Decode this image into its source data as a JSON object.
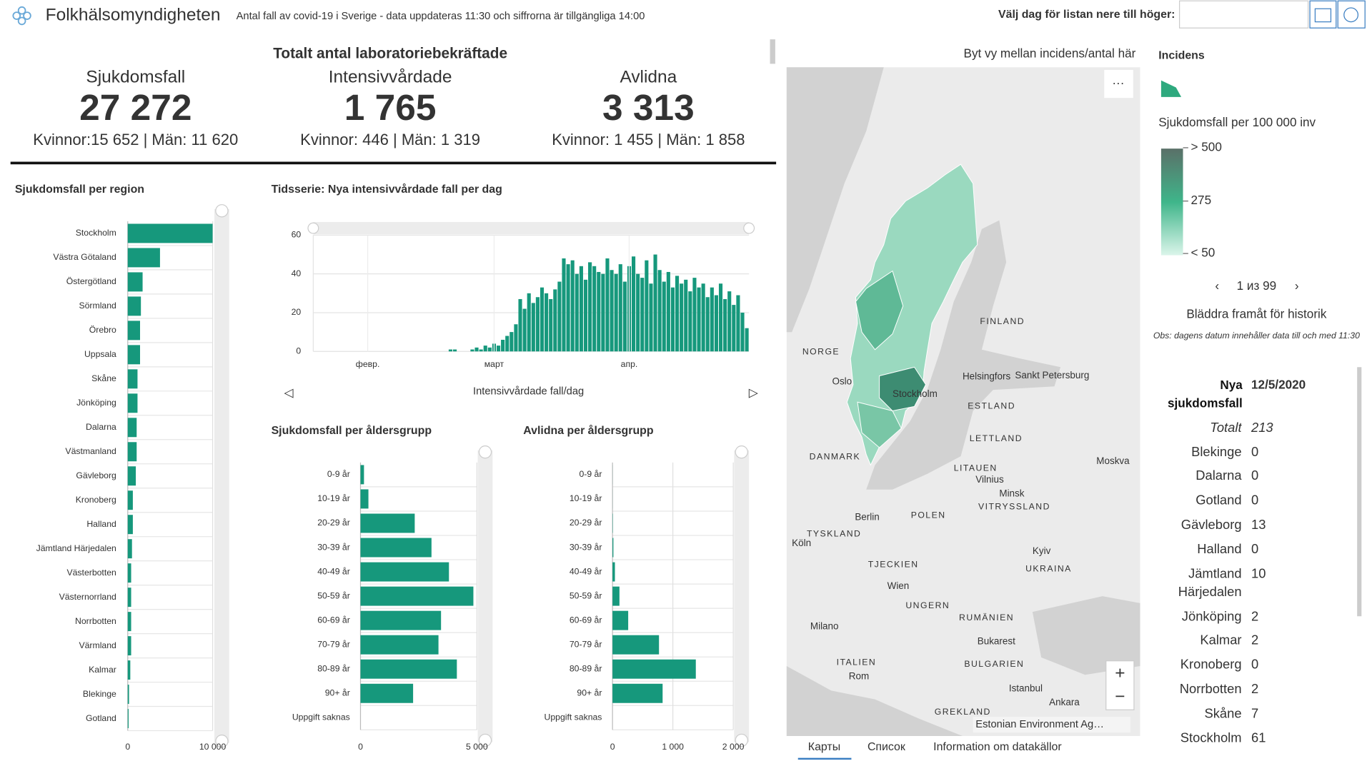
{
  "header": {
    "title": "Folkhälsomyndigheten",
    "subtitle": "Antal fall av covid-19 i Sverige - data uppdateras 11:30 och siffrorna är tillgängliga 14:00",
    "date_picker_label": "Välj dag för listan nere till höger:"
  },
  "summary": {
    "title": "Totalt antal laboratoriebekräftade",
    "items": [
      {
        "label": "Sjukdomsfall",
        "value": "27 272",
        "detail": "Kvinnor:15 652 | Män: 11 620"
      },
      {
        "label": "Intensivvårdade",
        "value": "1 765",
        "detail": "Kvinnor: 446 | Män: 1 319"
      },
      {
        "label": "Avlidna",
        "value": "3 313",
        "detail": "Kvinnor: 1 455 | Män: 1 858"
      }
    ]
  },
  "chart_data": [
    {
      "type": "bar",
      "orientation": "horizontal",
      "title": "Sjukdomsfall per region",
      "categories": [
        "Stockholm",
        "Västra Götaland",
        "Östergötland",
        "Sörmland",
        "Örebro",
        "Uppsala",
        "Skåne",
        "Jönköping",
        "Dalarna",
        "Västmanland",
        "Gävleborg",
        "Kronoberg",
        "Halland",
        "Jämtland Härjedalen",
        "Västerbotten",
        "Västernorrland",
        "Norrbotten",
        "Värmland",
        "Kalmar",
        "Blekinge",
        "Gotland"
      ],
      "values": [
        10000,
        3800,
        1750,
        1550,
        1450,
        1450,
        1150,
        1150,
        1050,
        1050,
        950,
        600,
        600,
        500,
        400,
        400,
        400,
        400,
        300,
        150,
        100
      ],
      "color": "#16987c",
      "xlim": [
        0,
        10000
      ],
      "xticks": [
        0,
        {
          "value": 10000,
          "label": "10 000"
        }
      ],
      "grid": true
    },
    {
      "type": "bar",
      "orientation": "vertical",
      "title": "Tidsserie: Nya intensivvårdade fall per dag",
      "categories": [
        null,
        null,
        null,
        null,
        null,
        null,
        null,
        null,
        null,
        null,
        null,
        null,
        "февр.",
        null,
        null,
        null,
        null,
        null,
        null,
        null,
        null,
        null,
        null,
        null,
        null,
        null,
        null,
        null,
        null,
        null,
        null,
        null,
        null,
        null,
        null,
        null,
        null,
        null,
        null,
        null,
        null,
        "март",
        null,
        null,
        null,
        null,
        null,
        null,
        null,
        null,
        null,
        null,
        null,
        null,
        null,
        null,
        null,
        null,
        null,
        null,
        null,
        null,
        null,
        null,
        null,
        null,
        null,
        null,
        null,
        null,
        null,
        null,
        "апр.",
        null,
        null,
        null,
        null,
        null,
        null,
        null,
        null,
        null,
        null,
        null,
        null,
        null,
        null,
        null,
        null,
        null,
        null,
        null,
        null,
        null,
        null,
        null,
        null,
        null,
        null,
        null
      ],
      "values": [
        0,
        0,
        0,
        0,
        0,
        0,
        0,
        0,
        0,
        0,
        0,
        0,
        0,
        0,
        0,
        0,
        0,
        0,
        0,
        0,
        0,
        0,
        0,
        0,
        0,
        0,
        0,
        0,
        0,
        0,
        0,
        1,
        1,
        0,
        0,
        0,
        1,
        2,
        1,
        3,
        2,
        4,
        3,
        6,
        8,
        10,
        14,
        27,
        22,
        30,
        25,
        28,
        33,
        30,
        27,
        32,
        36,
        48,
        45,
        47,
        40,
        44,
        37,
        46,
        44,
        41,
        40,
        48,
        42,
        40,
        45,
        36,
        44,
        49,
        40,
        38,
        47,
        35,
        50,
        42,
        36,
        41,
        33,
        39,
        35,
        37,
        31,
        38,
        33,
        35,
        28,
        33,
        29,
        35,
        27,
        31,
        24,
        29,
        20,
        12
      ],
      "color": "#16987c",
      "ylim": [
        0,
        60
      ],
      "yticks": [
        0,
        20,
        40,
        60
      ],
      "xlabel": "Intensivvårdade fall/dag",
      "grid": true
    },
    {
      "type": "bar",
      "orientation": "horizontal",
      "title": "Sjukdomsfall per åldersgrupp",
      "categories": [
        "0-9 år",
        "10-19 år",
        "20-29 år",
        "30-39 år",
        "40-49 år",
        "50-59 år",
        "60-69 år",
        "70-79 år",
        "80-89 år",
        "90+ år",
        "Uppgift saknas"
      ],
      "values": [
        150,
        340,
        2330,
        3050,
        3800,
        4850,
        3460,
        3350,
        4140,
        2260,
        0
      ],
      "color": "#16987c",
      "xlim": [
        0,
        5000
      ],
      "xticks": [
        0,
        {
          "value": 5000,
          "label": "5 000"
        }
      ],
      "grid": true
    },
    {
      "type": "bar",
      "orientation": "horizontal",
      "title": "Avlidna per åldersgrupp",
      "categories": [
        "0-9 år",
        "10-19 år",
        "20-29 år",
        "30-39 år",
        "40-49 år",
        "50-59 år",
        "60-69 år",
        "70-79 år",
        "80-89 år",
        "90+ år",
        "Uppgift saknas"
      ],
      "values": [
        1,
        1,
        5,
        15,
        40,
        115,
        260,
        770,
        1380,
        830,
        0
      ],
      "color": "#16987c",
      "xlim": [
        0,
        2000
      ],
      "xticks": [
        0,
        {
          "value": 1000,
          "label": "1 000"
        },
        {
          "value": 2000,
          "label": "2 000"
        }
      ],
      "grid": true
    }
  ],
  "map": {
    "toggle_label": "Byt vy mellan incidens/antal här",
    "labels": [
      "NORGE",
      "FINLAND",
      "Oslo",
      "Helsingfors",
      "Sankt Petersburg",
      "Stockholm",
      "ESTLAND",
      "LETTLAND",
      "DANMARK",
      "LITAUEN",
      "Vilnius",
      "Minsk",
      "VITRYSSLAND",
      "Moskva",
      "Berlin",
      "POLEN",
      "TYSKLAND",
      "Köln",
      "TJECKIEN",
      "Kyiv",
      "UKRAINA",
      "Wien",
      "UNGERN",
      "RUMÄNIEN",
      "Milano",
      "Bukarest",
      "BULGARIEN",
      "ITALIEN",
      "Rom",
      "Istanbul",
      "Ankara",
      "GREKLAND"
    ],
    "attribution": "Estonian Environment Ag…",
    "tabs": [
      "Карты",
      "Список",
      "Information om datakällor"
    ]
  },
  "legend": {
    "title": "Incidens",
    "subtitle": "Sjukdomsfall per 100 000 inv",
    "stops": [
      "> 500",
      "275",
      "< 50"
    ],
    "pager": "1 из 99",
    "hint": "Bläddra framåt för historik",
    "note": "Obs: dagens datum innehåller data till och med 11:30"
  },
  "list": {
    "header": "Nya sjukdomsfall",
    "date": "12/5/2020",
    "rows": [
      [
        "Totalt",
        "213"
      ],
      [
        "Blekinge",
        "0"
      ],
      [
        "Dalarna",
        "0"
      ],
      [
        "Gotland",
        "0"
      ],
      [
        "Gävleborg",
        "13"
      ],
      [
        "Halland",
        "0"
      ],
      [
        "Jämtland Härjedalen",
        "10"
      ],
      [
        "Jönköping",
        "2"
      ],
      [
        "Kalmar",
        "2"
      ],
      [
        "Kronoberg",
        "0"
      ],
      [
        "Norrbotten",
        "2"
      ],
      [
        "Skåne",
        "7"
      ],
      [
        "Stockholm",
        "61"
      ]
    ]
  }
}
